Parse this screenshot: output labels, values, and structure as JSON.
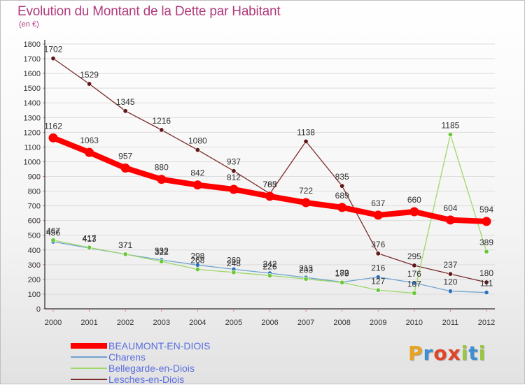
{
  "header": {
    "title": "Evolution du Montant de la Dette par Habitant",
    "subtitle": "(en €)"
  },
  "colors": {
    "title": "#b03a7c",
    "grid": "#dcdcdc",
    "axis": "#000000"
  },
  "logo": {
    "text": "Proxiti",
    "letters": [
      {
        "ch": "P",
        "color": "#e8a31f"
      },
      {
        "ch": "r",
        "color": "#3f8fd0"
      },
      {
        "ch": "o",
        "color": "#e0452a"
      },
      {
        "ch": "x",
        "color": "#e0452a"
      },
      {
        "ch": "i",
        "color": "#9ac63f"
      },
      {
        "ch": "t",
        "color": "#3f8fd0"
      },
      {
        "ch": "i",
        "color": "#9ac63f"
      }
    ]
  },
  "chart_data": {
    "type": "line",
    "title": "Evolution du Montant de la Dette par Habitant",
    "subtitle": "(en €)",
    "xlabel": "",
    "ylabel": "",
    "x": [
      "2000",
      "2001",
      "2002",
      "2003",
      "2004",
      "2005",
      "2006",
      "2007",
      "2008",
      "2009",
      "2010",
      "2011",
      "2012"
    ],
    "ylim": [
      0,
      1800
    ],
    "yticks": [
      0,
      100,
      200,
      300,
      400,
      500,
      600,
      700,
      800,
      900,
      1000,
      1100,
      1200,
      1300,
      1400,
      1500,
      1600,
      1700,
      1800
    ],
    "grid": true,
    "legend_position": "bottom-left",
    "series": [
      {
        "name": "BEAUMONT-EN-DIOIS",
        "color": "#ff0000",
        "point_color": "#ff0000",
        "width": 8,
        "values": [
          1162,
          1063,
          957,
          880,
          842,
          812,
          765,
          722,
          689,
          637,
          660,
          604,
          594
        ]
      },
      {
        "name": "Charens",
        "color": "#6fa3d1",
        "point_color": "#2f72b8",
        "width": 1.3,
        "values": [
          456,
          413,
          371,
          332,
          298,
          269,
          242,
          213,
          182,
          216,
          176,
          120,
          111
        ]
      },
      {
        "name": "Bellegarde-en-Diois",
        "color": "#9fd86a",
        "point_color": "#6cc83a",
        "width": 1.3,
        "values": [
          467,
          417,
          371,
          322,
          268,
          248,
          226,
          203,
          179,
          127,
          107,
          1185,
          389
        ]
      },
      {
        "name": "Lesches-en-Diois",
        "color": "#7b2b2b",
        "point_color": "#5e1818",
        "width": 1.3,
        "values": [
          1702,
          1529,
          1345,
          1216,
          1080,
          937,
          783,
          1138,
          835,
          376,
          295,
          237,
          180
        ]
      }
    ]
  }
}
